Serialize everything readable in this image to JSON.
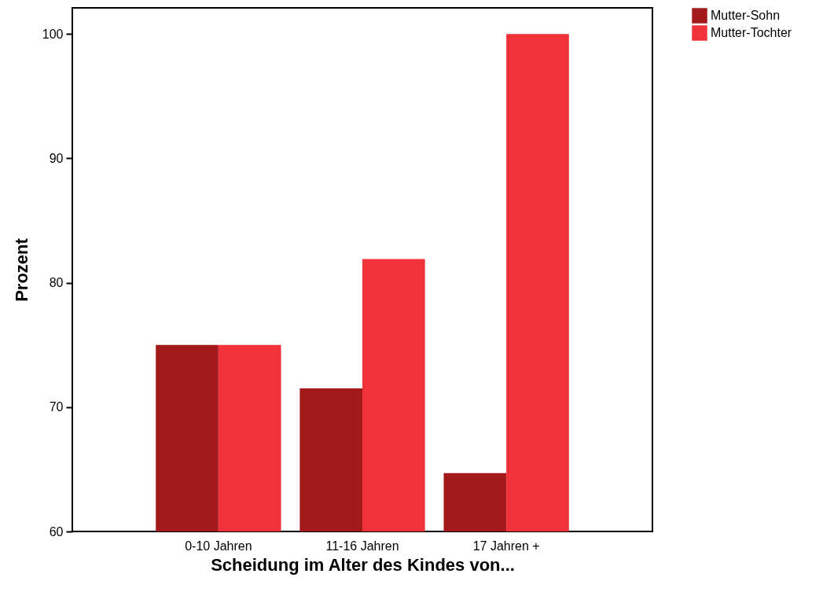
{
  "chart_data": {
    "type": "bar",
    "xlabel": "Scheidung im Alter des Kindes von...",
    "ylabel": "Prozent",
    "categories": [
      "0-10 Jahren",
      "11-16 Jahren",
      "17 Jahren +"
    ],
    "series": [
      {
        "name": "Mutter-Sohn",
        "color": "#a3191c",
        "values": [
          75,
          71.5,
          64.7
        ]
      },
      {
        "name": "Mutter-Tochter",
        "color": "#f0333a",
        "values": [
          75,
          81.9,
          100
        ]
      }
    ],
    "ylim": [
      60,
      102.1
    ],
    "yticks": [
      60,
      70,
      80,
      90,
      100
    ],
    "grid": false,
    "legend": "top right"
  }
}
